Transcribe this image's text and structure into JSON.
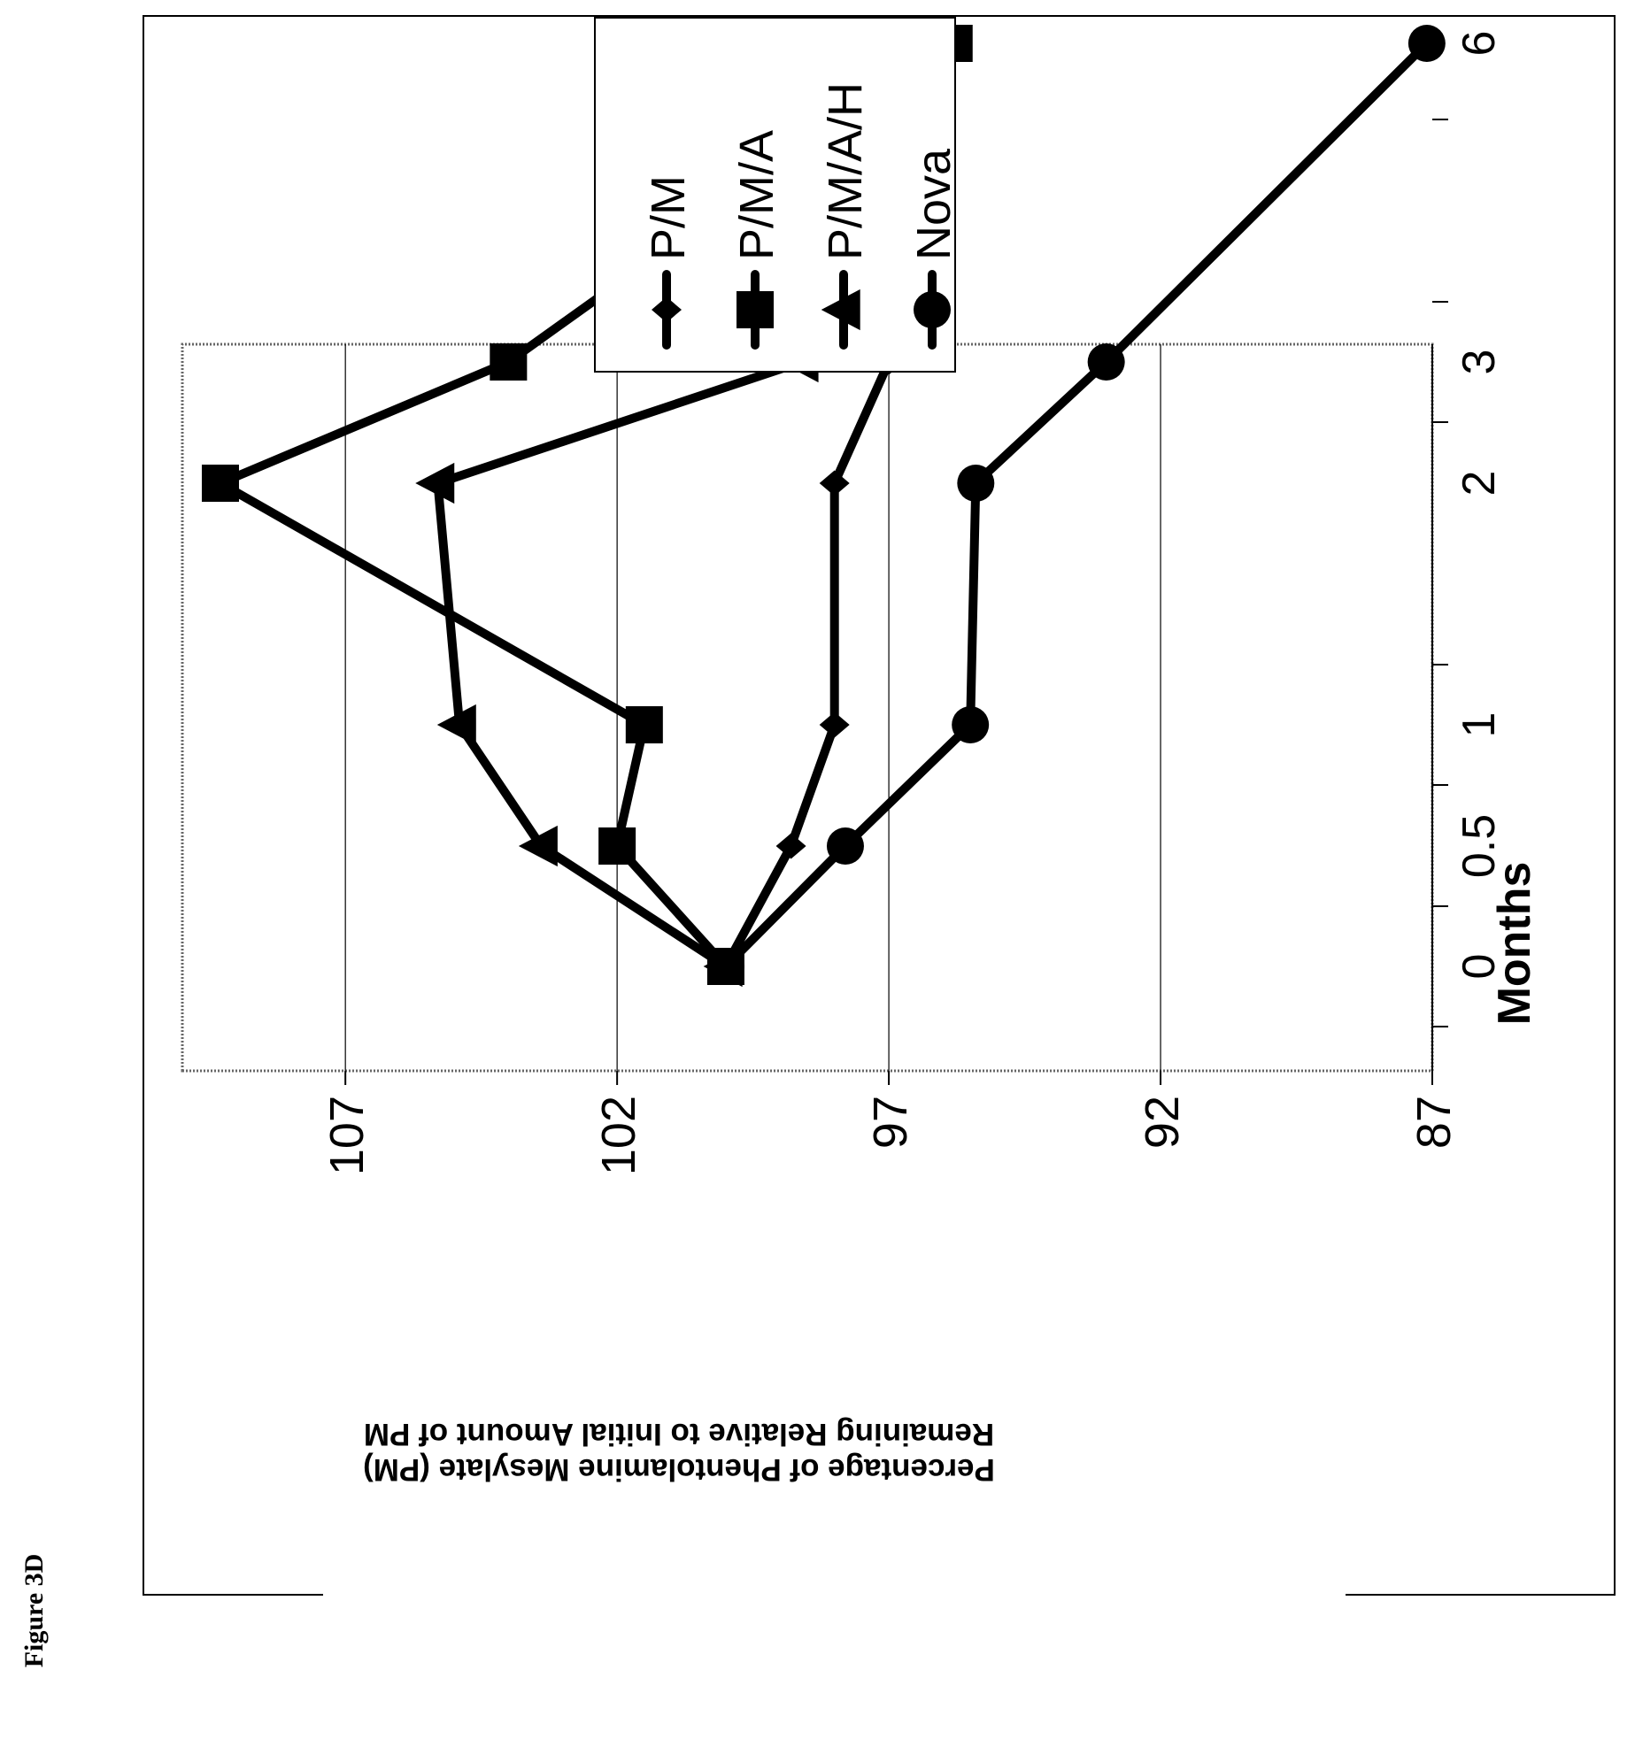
{
  "figure_label": "Figure 3D",
  "chart_data": {
    "type": "line",
    "orientation": "rotated 90 degrees counter-clockwise",
    "x_tick_labels": [
      "0",
      "0.5",
      "1",
      "2",
      "3",
      "6"
    ],
    "x_categories": [
      0,
      0.5,
      1,
      2,
      3,
      6
    ],
    "xlabel": "Months",
    "ylabel_line1": "Percentage of Phentolamine Mesylate (PM)",
    "ylabel_line2": "Remaining Relative to Initial Amount of PM",
    "y_tick_labels": [
      "87",
      "92",
      "97",
      "102",
      "107"
    ],
    "ylim": [
      87,
      110
    ],
    "grid": "horizontal gridlines at each y tick",
    "legend_placement": "top-right",
    "line_color": "#000000",
    "series": [
      {
        "name": "P/M",
        "marker": "diamond",
        "x": [
          0,
          0.5,
          1,
          2,
          3
        ],
        "values": [
          100,
          98.8,
          98.0,
          98.0,
          97.0
        ]
      },
      {
        "name": "P/M/A",
        "marker": "square",
        "x": [
          0,
          0.5,
          1,
          2,
          3,
          6
        ],
        "values": [
          100,
          102.0,
          101.5,
          109.3,
          104.0,
          95.8
        ]
      },
      {
        "name": "P/M/A/H",
        "marker": "triangle",
        "x": [
          0,
          0.5,
          1,
          2,
          3,
          6
        ],
        "values": [
          100,
          103.4,
          104.9,
          105.3,
          98.6,
          97.7
        ]
      },
      {
        "name": "Nova",
        "marker": "circle",
        "x": [
          0,
          0.5,
          1,
          2,
          3,
          6
        ],
        "values": [
          100,
          97.8,
          95.5,
          95.4,
          93.0,
          87.1
        ]
      }
    ]
  }
}
